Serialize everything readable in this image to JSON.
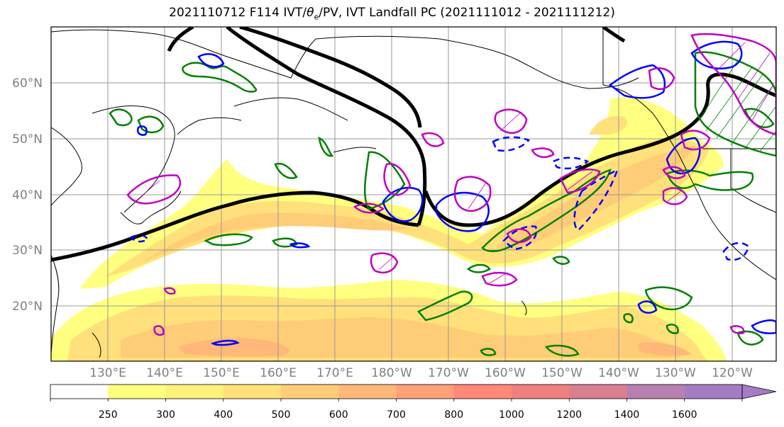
{
  "title": {
    "prefix": "2021110712 F114 IVT/",
    "theta": "θ",
    "theta_sub": "e",
    "suffix": "/PV, IVT Landfall PC (2021111012 - 2021111212)"
  },
  "axes": {
    "lat_labels": [
      "60°N",
      "50°N",
      "40°N",
      "30°N",
      "20°N"
    ],
    "lon_labels": [
      "130°E",
      "140°E",
      "150°E",
      "160°E",
      "170°E",
      "180°W",
      "170°W",
      "160°W",
      "150°W",
      "140°W",
      "130°W",
      "120°W"
    ],
    "grid": true
  },
  "colorbar": {
    "levels": [
      "250",
      "300",
      "400",
      "500",
      "600",
      "700",
      "800",
      "1000",
      "1200",
      "1400",
      "1600"
    ],
    "colors": [
      "#ffffff",
      "#ffff80",
      "#fff27a",
      "#ffe07a",
      "#ffcc78",
      "#ffb878",
      "#ffa078",
      "#ff8878",
      "#ef8080",
      "#d88090",
      "#b880b0",
      "#a47cc4"
    ],
    "extend": "max"
  },
  "colors": {
    "jet_line": "#000000",
    "pv_contour": "#008000",
    "theta_contour": "#0000ff",
    "pc_contour": "#c000c0",
    "coast": "#000000"
  }
}
